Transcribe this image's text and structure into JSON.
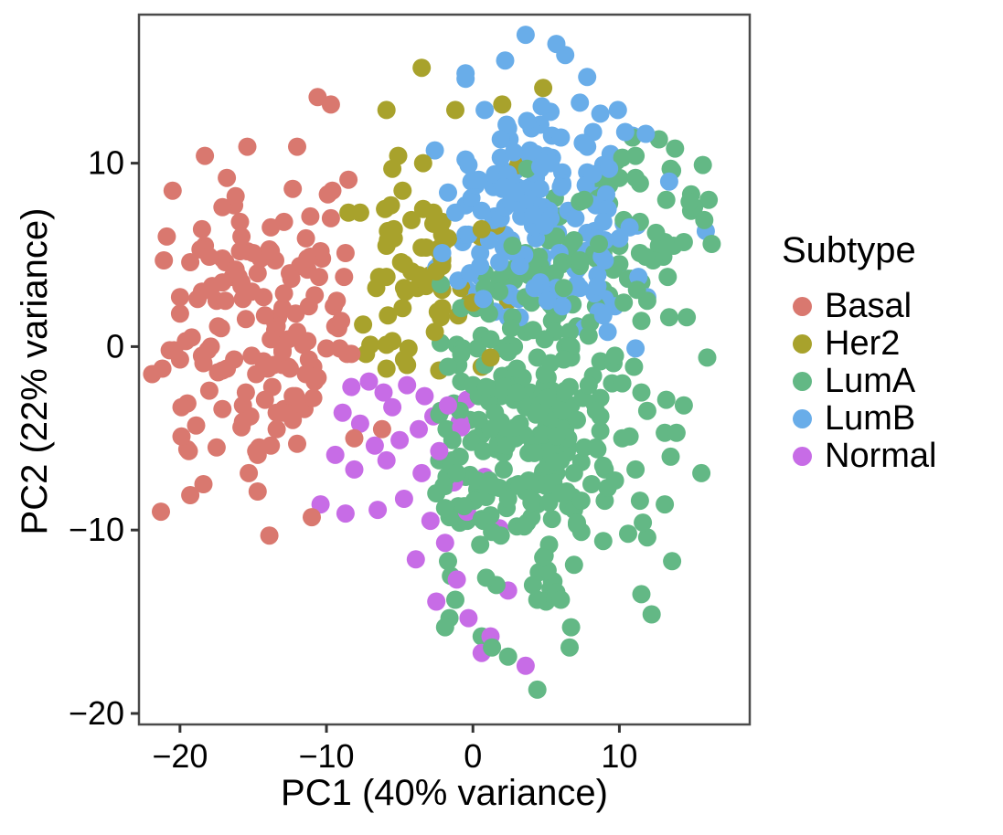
{
  "chart_data": {
    "type": "scatter",
    "title": "",
    "xlabel": "PC1 (40% variance)",
    "ylabel": "PC2 (22% variance)",
    "legend_title": "Subtype",
    "legend_position": "right",
    "grid": false,
    "x_ticks": [
      -20,
      -10,
      0,
      10
    ],
    "y_ticks": [
      -20,
      -10,
      0,
      10
    ],
    "x_range": [
      -22.8,
      18.9
    ],
    "y_range": [
      -20.6,
      18.1
    ],
    "point_radius_px": 10,
    "panel_border_color": "#4a4a4a",
    "tick_color": "#333333",
    "text_color": "#000000",
    "note": "Dense PCA scatter; clouds are reproduced from per-subtype cluster parameters (center/sd/clip/count) plus individually read outlier points.",
    "series": [
      {
        "name": "Basal",
        "color": "#D9786F",
        "seed": 101,
        "clusters": [
          {
            "count": 155,
            "center": [
              -14.3,
              0.8
            ],
            "sd": [
              3.3,
              4.4
            ],
            "clip": [
              [
                -22.3,
                -5.0
              ],
              [
                -9.5,
                11.5
              ]
            ]
          }
        ],
        "outliers": [
          [
            -10.6,
            13.6
          ],
          [
            -9.7,
            13.2
          ],
          [
            -13.9,
            -10.3
          ],
          [
            -20.9,
            6.0
          ],
          [
            -21.2,
            -1.2
          ],
          [
            -6.2,
            -4.5
          ],
          [
            -12.0,
            10.9
          ],
          [
            -16.8,
            9.2
          ]
        ]
      },
      {
        "name": "Her2",
        "color": "#A8A22C",
        "seed": 202,
        "clusters": [
          {
            "count": 66,
            "center": [
              -3.9,
              4.6
            ],
            "sd": [
              2.3,
              3.3
            ],
            "clip": [
              [
                -8.8,
                0.8
              ],
              [
                -1.8,
                12.0
              ]
            ]
          }
        ],
        "outliers": [
          [
            -3.5,
            15.2
          ],
          [
            -1.2,
            12.9
          ],
          [
            4.8,
            14.1
          ],
          [
            3.1,
            9.9
          ],
          [
            2.0,
            13.2
          ],
          [
            -5.9,
            12.9
          ],
          [
            1.6,
            6.6
          ],
          [
            2.4,
            2.5
          ],
          [
            1.2,
            -0.6
          ],
          [
            -4.5,
            -1.0
          ]
        ]
      },
      {
        "name": "LumA",
        "color": "#63B885",
        "seed": 303,
        "clusters": [
          {
            "count": 290,
            "center": [
              4.3,
              -4.8
            ],
            "sd": [
              3.9,
              4.6
            ],
            "clip": [
              [
                -2.6,
                16.3
              ],
              [
                -16.5,
                6.0
              ]
            ]
          },
          {
            "count": 70,
            "center": [
              9.5,
              5.5
            ],
            "sd": [
              3.6,
              2.8
            ],
            "clip": [
              [
                1.0,
                16.3
              ],
              [
                1.0,
                11.2
              ]
            ]
          }
        ],
        "outliers": [
          [
            4.4,
            -18.7
          ],
          [
            12.2,
            -14.6
          ],
          [
            15.8,
            6.9
          ],
          [
            15.1,
            7.6
          ],
          [
            16.3,
            5.6
          ],
          [
            13.8,
            10.8
          ],
          [
            12.7,
            11.3
          ],
          [
            -1.6,
            -14.8
          ],
          [
            16.0,
            -0.6
          ],
          [
            15.6,
            -6.9
          ],
          [
            6.6,
            -16.4
          ],
          [
            2.4,
            -16.9
          ],
          [
            10.9,
            11.4
          ],
          [
            14.4,
            -3.2
          ]
        ]
      },
      {
        "name": "LumB",
        "color": "#69ADE9",
        "seed": 404,
        "clusters": [
          {
            "count": 165,
            "center": [
              4.0,
              7.3
            ],
            "sd": [
              3.3,
              3.2
            ],
            "clip": [
              [
                -3.0,
                12.6
              ],
              [
                0.6,
                15.0
              ]
            ]
          },
          {
            "count": 14,
            "center": [
              9.0,
              3.0
            ],
            "sd": [
              3.0,
              2.0
            ],
            "clip": [
              [
                4.0,
                12.0
              ],
              [
                -3.0,
                6.0
              ]
            ]
          }
        ],
        "outliers": [
          [
            3.6,
            17.0
          ],
          [
            5.7,
            16.5
          ],
          [
            2.2,
            15.6
          ],
          [
            6.3,
            15.9
          ],
          [
            15.9,
            6.3
          ],
          [
            13.4,
            9.0
          ],
          [
            -0.5,
            14.9
          ],
          [
            9.9,
            12.9
          ],
          [
            11.8,
            11.6
          ]
        ]
      },
      {
        "name": "Normal",
        "color": "#C76CE6",
        "seed": 505,
        "clusters": [],
        "outliers": [
          [
            -8.3,
            -2.2
          ],
          [
            -7.1,
            -1.9
          ],
          [
            -6.1,
            -2.5
          ],
          [
            -8.9,
            -3.6
          ],
          [
            -7.7,
            -4.2
          ],
          [
            -5.5,
            -3.3
          ],
          [
            -4.5,
            -2.1
          ],
          [
            -3.3,
            -2.7
          ],
          [
            -6.7,
            -5.4
          ],
          [
            -5.9,
            -6.2
          ],
          [
            -8.1,
            -6.7
          ],
          [
            -9.4,
            -5.9
          ],
          [
            -5.0,
            -5.1
          ],
          [
            -3.7,
            -4.5
          ],
          [
            -2.7,
            -3.8
          ],
          [
            -1.7,
            -3.2
          ],
          [
            -0.8,
            -4.4
          ],
          [
            -2.3,
            -5.7
          ],
          [
            -3.5,
            -6.9
          ],
          [
            -1.3,
            -7.4
          ],
          [
            -4.7,
            -8.3
          ],
          [
            -6.5,
            -8.9
          ],
          [
            -8.7,
            -9.1
          ],
          [
            -10.4,
            -8.6
          ],
          [
            -2.9,
            -9.5
          ],
          [
            -0.4,
            -9.0
          ],
          [
            -1.9,
            -10.7
          ],
          [
            -3.9,
            -11.6
          ],
          [
            -1.1,
            -12.7
          ],
          [
            -2.5,
            -13.9
          ],
          [
            -0.3,
            -14.8
          ],
          [
            1.2,
            -15.8
          ],
          [
            3.6,
            -17.4
          ],
          [
            0.6,
            -16.7
          ],
          [
            2.4,
            -13.3
          ],
          [
            -0.9,
            -4.1
          ],
          [
            0.8,
            -7.1
          ],
          [
            1.8,
            -9.9
          ],
          [
            -0.4,
            -2.9
          ]
        ]
      }
    ]
  }
}
